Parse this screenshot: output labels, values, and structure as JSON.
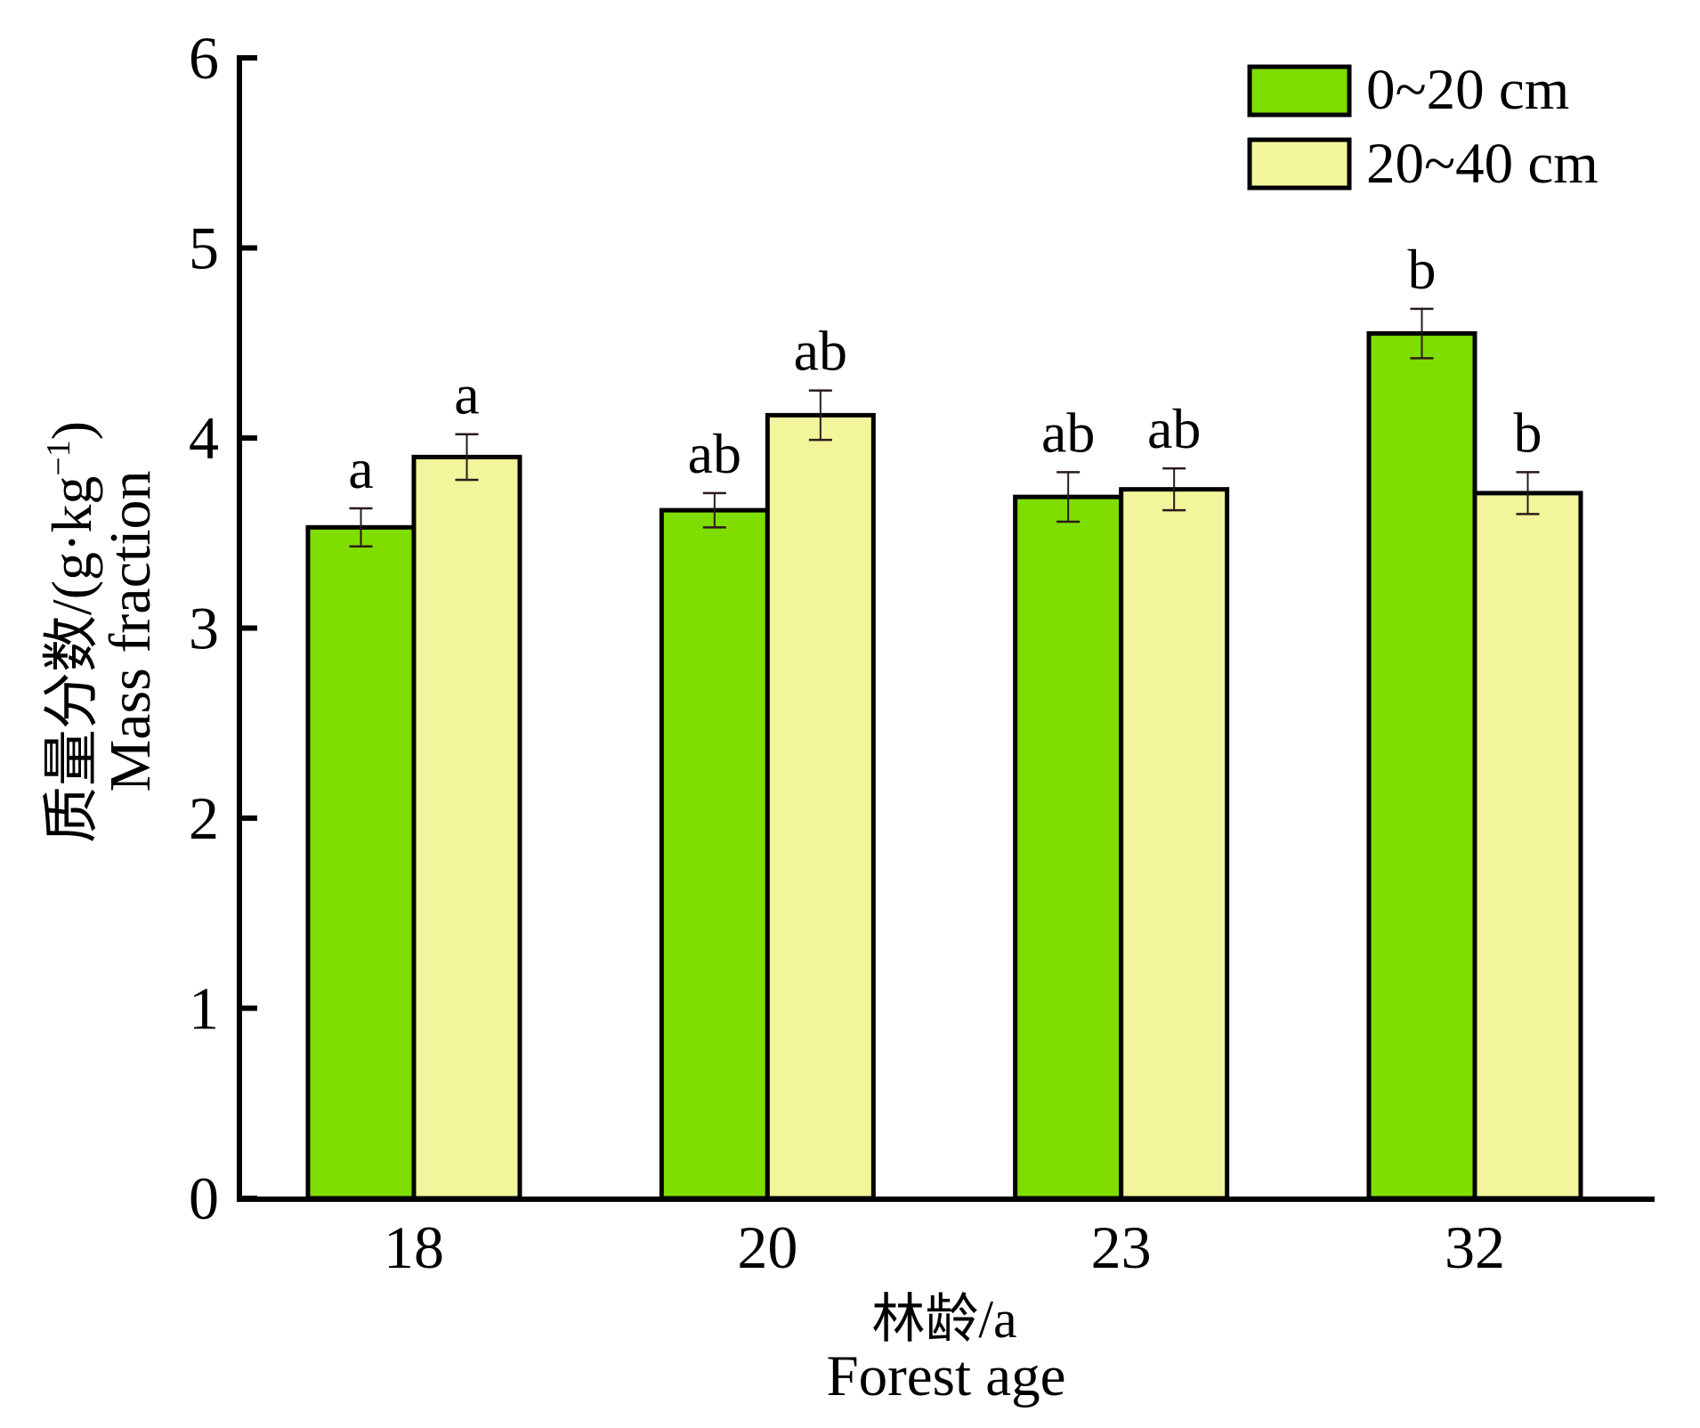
{
  "chart_data": {
    "type": "bar",
    "title": "",
    "xlabel": "林龄/a Forest age",
    "ylabel": "质量分数/(g·kg⁻¹) Mass fraction",
    "categories": [
      "18",
      "20",
      "23",
      "32"
    ],
    "series": [
      {
        "name": "0~20 cm",
        "color": "#7FDD00",
        "values": [
          3.53,
          3.62,
          3.69,
          4.55
        ],
        "errors": [
          0.1,
          0.09,
          0.13,
          0.13
        ],
        "significance": [
          "a",
          "ab",
          "ab",
          "b"
        ]
      },
      {
        "name": "20~40 cm",
        "color": "#F2F59B",
        "values": [
          3.9,
          4.12,
          3.73,
          3.71
        ],
        "errors": [
          0.12,
          0.13,
          0.11,
          0.11
        ],
        "significance": [
          "a",
          "ab",
          "ab",
          "b"
        ]
      }
    ],
    "ylim": [
      0,
      6
    ],
    "yticks": [
      0,
      1,
      2,
      3,
      4,
      5,
      6
    ],
    "ytick_labels": [
      "0",
      "1",
      "2",
      "3",
      "4",
      "5",
      "6"
    ],
    "grid": false,
    "legend_position": "upper right",
    "error_bar_color": "#2B1B1B",
    "axis_color": "#000000"
  },
  "axes": {
    "x_title_cn": "林龄/a",
    "x_title_en": "Forest age",
    "y_title_cn_main": "质量分数/(g·kg",
    "y_title_cn_sup": "−1",
    "y_title_cn_close": ")",
    "y_title_en": "Mass fraction"
  }
}
